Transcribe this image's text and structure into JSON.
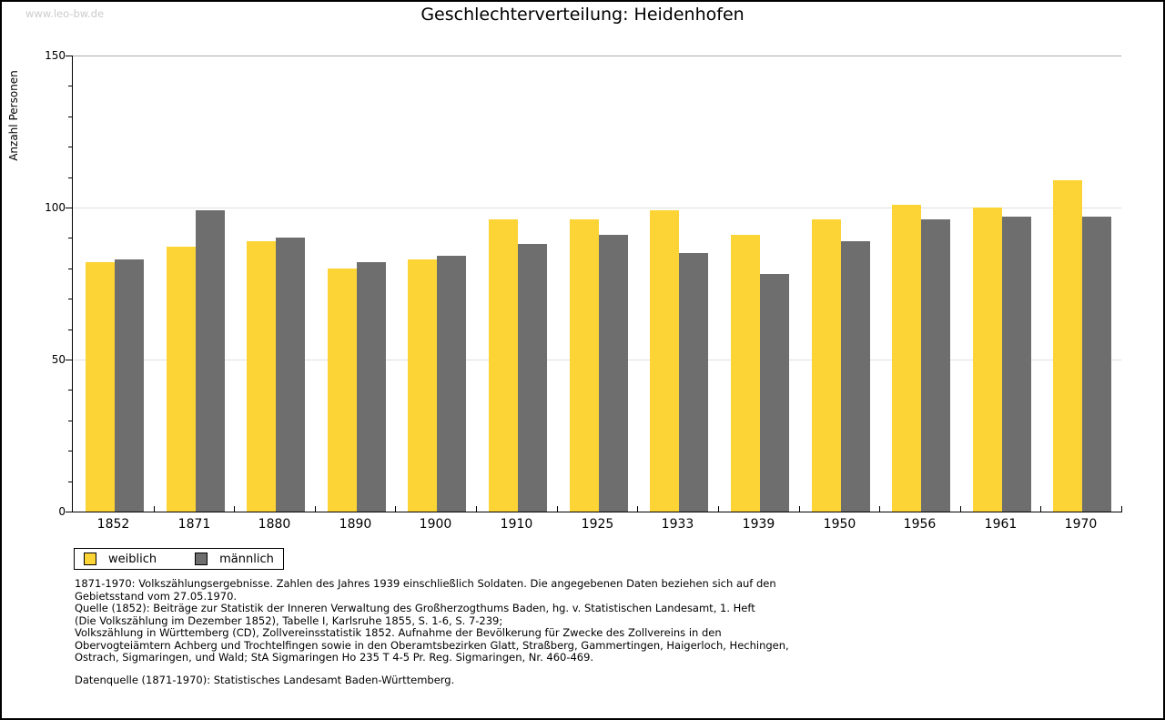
{
  "watermark": "www.leo-bw.de",
  "chart_data": {
    "type": "bar",
    "title": "Geschlechterverteilung: Heidenhofen",
    "ylabel": "Anzahl Personen",
    "categories": [
      "1852",
      "1871",
      "1880",
      "1890",
      "1900",
      "1910",
      "1925",
      "1933",
      "1939",
      "1950",
      "1956",
      "1961",
      "1970"
    ],
    "series": [
      {
        "name": "weiblich",
        "color": "#FCD435",
        "values": [
          82,
          87,
          89,
          80,
          83,
          96,
          96,
          99,
          91,
          96,
          101,
          100,
          109
        ]
      },
      {
        "name": "männlich",
        "color": "#6E6E6E",
        "values": [
          83,
          99,
          90,
          82,
          84,
          88,
          91,
          85,
          78,
          89,
          96,
          97,
          97
        ]
      }
    ],
    "ylim": [
      0,
      150
    ],
    "yticks": [
      0,
      50,
      100,
      150
    ],
    "minor_tick_step": 10,
    "grid": true,
    "gridline_color": "#e0e0e0",
    "top_line_color": "#aaaaaa",
    "legend_position": "bottom-left"
  },
  "footnotes": {
    "lines": [
      "1871-1970: Volkszählungsergebnisse. Zahlen des Jahres 1939 einschließlich Soldaten. Die angegebenen Daten beziehen sich auf den",
      "Gebietsstand vom 27.05.1970.",
      "Quelle (1852): Beiträge zur Statistik der Inneren Verwaltung des Großherzogthums Baden, hg. v. Statistischen Landesamt, 1. Heft",
      "(Die Volkszählung im Dezember 1852), Tabelle I, Karlsruhe 1855, S. 1-6, S. 7-239;",
      "Volkszählung in Württemberg (CD), Zollvereinsstatistik 1852. Aufnahme der Bevölkerung für Zwecke des Zollvereins in den",
      "Obervogteiämtern Achberg und Trochtelfingen sowie in den Oberamtsbezirken Glatt, Straßberg, Gammertingen, Haigerloch, Hechingen,",
      "Ostrach, Sigmaringen, und Wald; StA Sigmaringen Ho 235 T 4-5 Pr. Reg. Sigmaringen, Nr. 460-469."
    ],
    "datasource": "Datenquelle (1871-1970): Statistisches Landesamt Baden-Württemberg."
  }
}
